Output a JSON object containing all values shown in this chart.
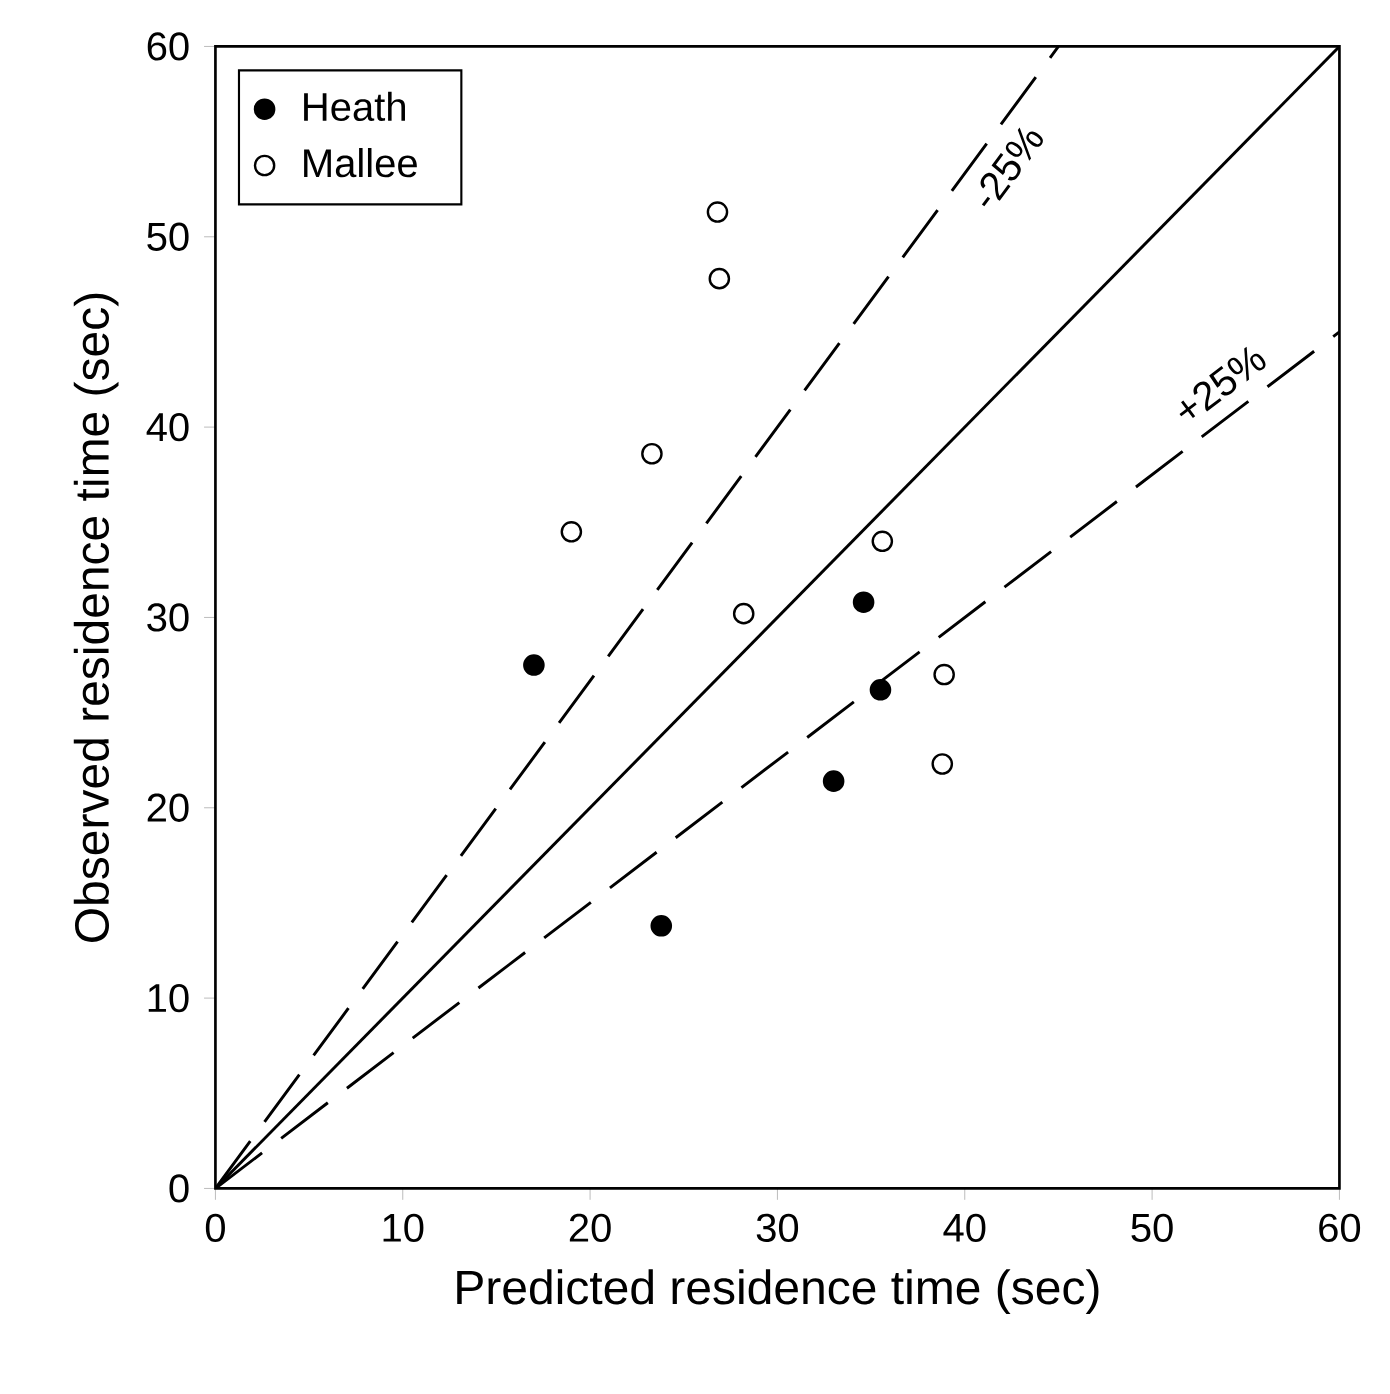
{
  "chart_data": {
    "type": "scatter",
    "xlabel": "Predicted residence time (sec)",
    "ylabel": "Observed residence time (sec)",
    "xlim": [
      0,
      60
    ],
    "ylim": [
      0,
      60
    ],
    "xticks": [
      0,
      10,
      20,
      30,
      40,
      50,
      60
    ],
    "yticks": [
      0,
      10,
      20,
      30,
      40,
      50,
      60
    ],
    "grid": false,
    "legend": "top left",
    "series": [
      {
        "name": "Heath",
        "color": "#000000",
        "marker": "circle",
        "x": [
          17.0,
          23.8,
          33.0,
          34.6,
          35.5
        ],
        "values": [
          27.5,
          13.8,
          21.4,
          30.8,
          26.2
        ]
      },
      {
        "name": "Mallee",
        "color": "#ffffff",
        "marker": "circle",
        "x": [
          26.8,
          26.9,
          23.3,
          19.0,
          28.2,
          35.6,
          38.9,
          38.8
        ],
        "values": [
          51.3,
          47.8,
          38.6,
          34.5,
          30.2,
          34.0,
          27.0,
          22.3
        ]
      },
      {
        "type": "line",
        "color": "#000000",
        "line_style": "solid",
        "x": [
          0,
          60
        ],
        "values": [
          0,
          60
        ]
      },
      {
        "type": "line",
        "color": "#000000",
        "line_style": "dashed",
        "x": [
          0,
          45
        ],
        "values": [
          0,
          60
        ]
      },
      {
        "type": "line",
        "color": "#000000",
        "line_style": "dashed",
        "x": [
          0,
          60
        ],
        "values": [
          0,
          45
        ]
      }
    ],
    "annotations": [
      "-25%",
      "+25%"
    ]
  }
}
